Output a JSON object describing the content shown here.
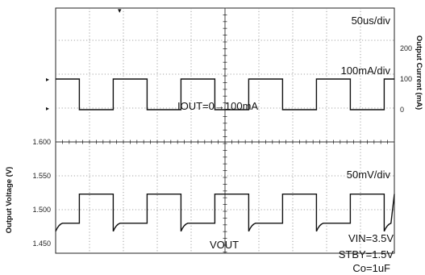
{
  "chart_data": {
    "type": "line",
    "upper_panel": {
      "quantity": "Output Current",
      "ylabel": "Output Current (mA)",
      "ylim": [
        -20,
        250
      ],
      "yticks": [
        0,
        100,
        200
      ],
      "scale_label": "100mA/div",
      "annotation": "IOUT=0→100mA",
      "low_value": 0,
      "high_value": 100
    },
    "lower_panel": {
      "quantity": "Output Voltage",
      "ylabel": "Output Voltage (V)",
      "ylim": [
        1.43,
        1.6
      ],
      "yticks": [
        1.45,
        1.5,
        1.55,
        1.6
      ],
      "scale_label": "50mV/div",
      "trace_label": "VOUT",
      "low_value": 1.48,
      "high_value": 1.523
    },
    "x_axis": {
      "time_label": "50us/div",
      "unit": "us",
      "xlim": [
        0,
        500
      ],
      "divisions": 10,
      "pulse_period": 100,
      "pulse_high_start": 35,
      "pulse_high_end": 85
    },
    "conditions": [
      "VIN=3.5V",
      "STBY=1.5V",
      "Co=1uF"
    ],
    "grid": true
  }
}
